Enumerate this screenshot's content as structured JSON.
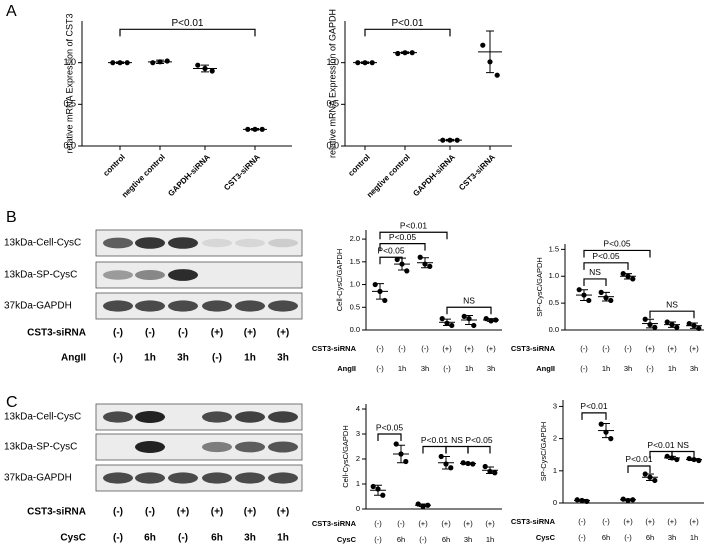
{
  "panels": [
    "A",
    "B",
    "C"
  ],
  "blots": [
    {
      "rows": [
        "13kDa-Cell-CysC",
        "13kDa-SP-CysC",
        "37kDa-GAPDH"
      ],
      "conditions": [
        {
          "name": "CST3-siRNA",
          "labels": [
            "(-)",
            "(-)",
            "(-)",
            "(+)",
            "(+)",
            "(+)"
          ]
        },
        {
          "name": "AngII",
          "labels": [
            "(-)",
            "1h",
            "3h",
            "(-)",
            "1h",
            "3h"
          ]
        }
      ]
    },
    {
      "rows": [
        "13kDa-Cell-CysC",
        "13kDa-SP-CysC",
        "37kDa-GAPDH"
      ],
      "conditions": [
        {
          "name": "CST3-siRNA",
          "labels": [
            "(-)",
            "(-)",
            "(+)",
            "(+)",
            "(+)",
            "(+)"
          ]
        },
        {
          "name": "CysC",
          "labels": [
            "(-)",
            "6h",
            "(-)",
            "6h",
            "3h",
            "1h"
          ]
        }
      ]
    }
  ],
  "chart_data": [
    {
      "type": "dot",
      "ylabel": "relative mRNA Expression of CST3",
      "color": "#000000",
      "categories": [
        "control",
        "negtive control",
        "GAPDH-siRNA",
        "CST3-siRNA"
      ],
      "values": [
        [
          1.0,
          1.0,
          1.0
        ],
        [
          1.0,
          1.01,
          1.02
        ],
        [
          0.97,
          0.93,
          0.9
        ],
        [
          0.2,
          0.2,
          0.2
        ]
      ],
      "means": [
        1.0,
        1.01,
        0.93,
        0.2
      ],
      "errors": [
        0.01,
        0.02,
        0.04,
        0.01
      ],
      "ylim": [
        0,
        1.5
      ],
      "yticks": [
        {
          "value": 0,
          "label": "0.0"
        },
        0.5,
        {
          "value": 1,
          "label": "1.0"
        }
      ],
      "annotations": [
        {
          "text": "P<0.01",
          "from": 0,
          "to": 3,
          "y": 1.4
        }
      ]
    },
    {
      "type": "dot",
      "ylabel": "relative mRNA Expression of GAPDH",
      "color": "#000000",
      "categories": [
        "control",
        "negtive control",
        "GAPDH-siRNA",
        "CST3-siRNA"
      ],
      "values": [
        [
          1.0,
          1.0,
          1.0
        ],
        [
          1.11,
          1.12,
          1.12
        ],
        [
          0.07,
          0.07,
          0.07
        ],
        [
          1.21,
          1.01,
          0.85
        ]
      ],
      "means": [
        1.0,
        1.12,
        0.07,
        1.13
      ],
      "errors": [
        0.01,
        0.01,
        0.01,
        0.25
      ],
      "ylim": [
        0,
        1.5
      ],
      "yticks": [
        {
          "value": 0,
          "label": "0.0"
        },
        0.5,
        {
          "value": 1,
          "label": "1.0"
        }
      ],
      "annotations": [
        {
          "text": "P<0.01",
          "from": 0,
          "to": 2,
          "y": 1.4
        }
      ]
    },
    {
      "type": "dot",
      "ylabel": "Cell-CysC/GAPDH",
      "color": "#000000",
      "x_rows": [
        {
          "name": "CST3-siRNA",
          "labels": [
            "(-)",
            "(-)",
            "(-)",
            "(+)",
            "(+)",
            "(+)"
          ]
        },
        {
          "name": "AngII",
          "labels": [
            "(-)",
            "1h",
            "3h",
            "(-)",
            "1h",
            "3h"
          ]
        }
      ],
      "values": [
        [
          1.0,
          0.85,
          0.65
        ],
        [
          1.55,
          1.45,
          1.3
        ],
        [
          1.6,
          1.45,
          1.4
        ],
        [
          0.25,
          0.15,
          0.1
        ],
        [
          0.3,
          0.25,
          0.1
        ],
        [
          0.25,
          0.2,
          0.22
        ]
      ],
      "means": [
        0.85,
        1.45,
        1.48,
        0.17,
        0.22,
        0.22
      ],
      "errors": [
        0.17,
        0.13,
        0.11,
        0.07,
        0.1,
        0.03
      ],
      "ylim": [
        0,
        2.2
      ],
      "yticks": [
        {
          "value": 0,
          "label": "0.0"
        },
        0.5,
        {
          "value": 1,
          "label": "1.0"
        },
        1.5,
        {
          "value": 2,
          "label": "2.0"
        }
      ],
      "annotations": [
        {
          "text": "P<0.05",
          "from": 0,
          "to": 1,
          "y": 1.6
        },
        {
          "text": "P<0.05",
          "from": 0,
          "to": 2,
          "y": 1.9
        },
        {
          "text": "P<0.01",
          "from": 0,
          "to": 3,
          "y": 2.15
        },
        {
          "text": "NS",
          "from": 3,
          "to": 5,
          "y": 0.5
        }
      ]
    },
    {
      "type": "dot",
      "ylabel": "SP-CysC/GAPDH",
      "color": "#000000",
      "x_rows": [
        {
          "name": "CST3-siRNA",
          "labels": [
            "(-)",
            "(-)",
            "(-)",
            "(+)",
            "(+)",
            "(+)"
          ]
        },
        {
          "name": "AngII",
          "labels": [
            "(-)",
            "1h",
            "3h",
            "(-)",
            "1h",
            "3h"
          ]
        }
      ],
      "values": [
        [
          0.75,
          0.65,
          0.55
        ],
        [
          0.7,
          0.6,
          0.55
        ],
        [
          1.05,
          1.0,
          0.95
        ],
        [
          0.2,
          0.1,
          0.05
        ],
        [
          0.15,
          0.1,
          0.05
        ],
        [
          0.12,
          0.08,
          0.03
        ]
      ],
      "means": [
        0.65,
        0.62,
        1.0,
        0.12,
        0.1,
        0.08
      ],
      "errors": [
        0.1,
        0.08,
        0.05,
        0.08,
        0.05,
        0.05
      ],
      "ylim": [
        0,
        1.6
      ],
      "yticks": [
        {
          "value": 0,
          "label": "0.0"
        },
        0.5,
        {
          "value": 1,
          "label": "1.0"
        },
        1.5
      ],
      "annotations": [
        {
          "text": "NS",
          "from": 0,
          "to": 1,
          "y": 0.95
        },
        {
          "text": "P<0.05",
          "from": 0,
          "to": 2,
          "y": 1.25
        },
        {
          "text": "P<0.05",
          "from": 0,
          "to": 3,
          "y": 1.48
        },
        {
          "text": "NS",
          "from": 3,
          "to": 5,
          "y": 0.35
        }
      ]
    },
    {
      "type": "dot",
      "ylabel": "Cell-CysC/GAPDH",
      "color": "#000000",
      "x_rows": [
        {
          "name": "CST3-siRNA",
          "labels": [
            "(-)",
            "(-)",
            "(+)",
            "(+)",
            "(+)",
            "(+)"
          ]
        },
        {
          "name": "CysC",
          "labels": [
            "(-)",
            "6h",
            "(-)",
            "6h",
            "3h",
            "1h"
          ]
        }
      ],
      "values": [
        [
          0.9,
          0.8,
          0.55
        ],
        [
          2.6,
          2.2,
          1.9
        ],
        [
          0.2,
          0.1,
          0.15
        ],
        [
          2.1,
          1.8,
          1.65
        ],
        [
          1.85,
          1.82,
          1.8
        ],
        [
          1.7,
          1.5,
          1.45
        ]
      ],
      "means": [
        0.75,
        2.2,
        0.15,
        1.85,
        1.82,
        1.55
      ],
      "errors": [
        0.2,
        0.35,
        0.05,
        0.25,
        0.03,
        0.13
      ],
      "ylim": [
        0,
        4.2
      ],
      "yticks": [
        0,
        1,
        2,
        3,
        4
      ],
      "annotations": [
        {
          "text": "P<0.05",
          "from": 0,
          "to": 1,
          "y": 3.0
        },
        {
          "text": "P<0.01",
          "from": 2,
          "to": 3,
          "y": 2.5
        },
        {
          "text": "NS",
          "from": 3,
          "to": 4,
          "y": 2.5
        },
        {
          "text": "P<0.05",
          "from": 4,
          "to": 5,
          "y": 2.5
        }
      ]
    },
    {
      "type": "dot",
      "ylabel": "SP-CysC/GAPDH",
      "color": "#000000",
      "x_rows": [
        {
          "name": "CST3-siRNA",
          "labels": [
            "(-)",
            "(-)",
            "(+)",
            "(+)",
            "(+)",
            "(+)"
          ]
        },
        {
          "name": "CysC",
          "labels": [
            "(-)",
            "6h",
            "(-)",
            "6h",
            "3h",
            "1h"
          ]
        }
      ],
      "values": [
        [
          0.1,
          0.08,
          0.05
        ],
        [
          2.45,
          2.2,
          2.0
        ],
        [
          0.12,
          0.08,
          0.1
        ],
        [
          0.9,
          0.8,
          0.7
        ],
        [
          1.45,
          1.4,
          1.35
        ],
        [
          1.38,
          1.35,
          1.32
        ]
      ],
      "means": [
        0.08,
        2.25,
        0.1,
        0.8,
        1.4,
        1.35
      ],
      "errors": [
        0.03,
        0.22,
        0.03,
        0.1,
        0.05,
        0.03
      ],
      "ylim": [
        0,
        3.2
      ],
      "yticks": [
        0,
        1,
        2,
        3
      ],
      "annotations": [
        {
          "text": "P<0.01",
          "from": 0,
          "to": 1,
          "y": 2.8
        },
        {
          "text": "P<0.01",
          "from": 2,
          "to": 3,
          "y": 1.15
        },
        {
          "text": "P<0.01",
          "from": 3,
          "to": 4,
          "y": 1.6
        },
        {
          "text": "NS",
          "from": 4,
          "to": 5,
          "y": 1.6
        }
      ]
    }
  ]
}
